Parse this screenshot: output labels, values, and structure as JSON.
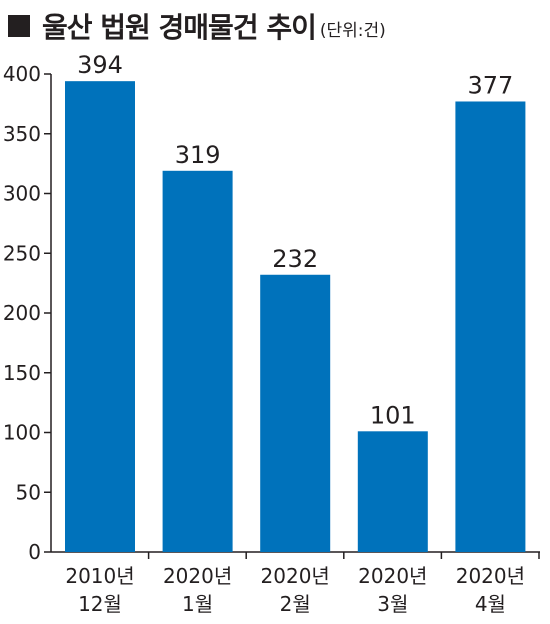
{
  "title": "울산 법원 경매물건 추이",
  "unit": "(단위:건)",
  "colors": {
    "bar": "#0072bb",
    "axis": "#231f20",
    "text": "#231f20"
  },
  "chart_data": {
    "type": "bar",
    "title": "울산 법원 경매물건 추이",
    "unit": "(단위:건)",
    "categories": [
      [
        "2010년",
        "12월"
      ],
      [
        "2020년",
        "1월"
      ],
      [
        "2020년",
        "2월"
      ],
      [
        "2020년",
        "3월"
      ],
      [
        "2020년",
        "4월"
      ]
    ],
    "values": [
      394,
      319,
      232,
      101,
      377
    ],
    "data_labels": [
      "394",
      "319",
      "232",
      "101",
      "377"
    ],
    "ylim": [
      0,
      400
    ],
    "yticks": [
      "0",
      "50",
      "100",
      "150",
      "200",
      "250",
      "300",
      "350",
      "400"
    ],
    "grid": false,
    "legend": "none"
  }
}
